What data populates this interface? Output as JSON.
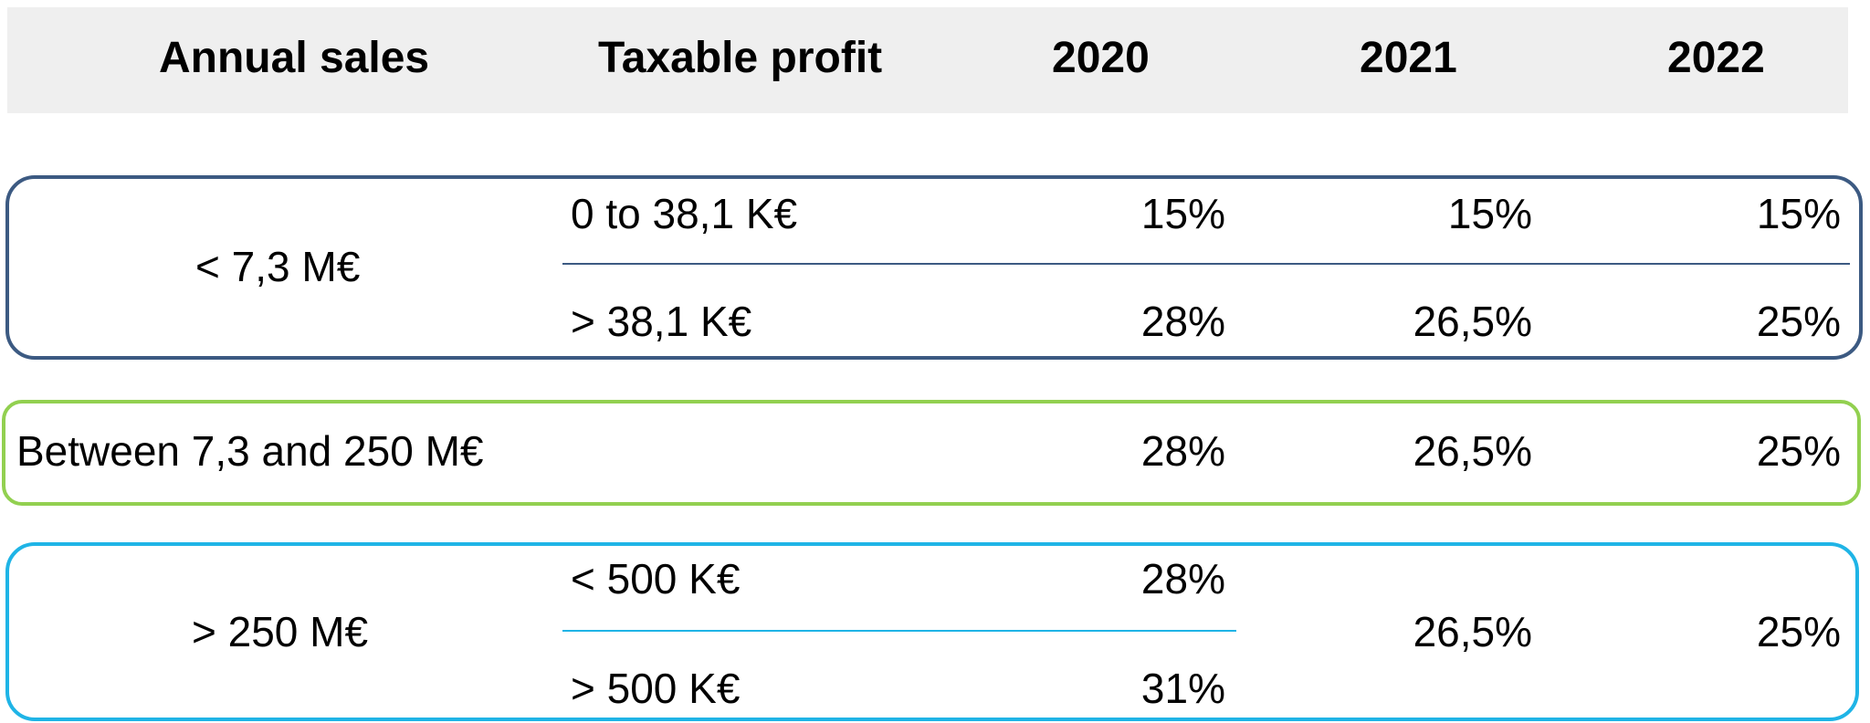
{
  "header": {
    "annual_sales": "Annual sales",
    "taxable_profit": "Taxable profit",
    "y2020": "2020",
    "y2021": "2021",
    "y2022": "2022"
  },
  "colors": {
    "header_background": "#efefef",
    "group1_border": "#3c5a82",
    "group2_border": "#92d050",
    "group3_border": "#1fb4e6"
  },
  "groups": [
    {
      "sales": "< 7,3 M€",
      "rows": [
        {
          "profit": "0 to 38,1 K€",
          "y2020": "15%",
          "y2021": "15%",
          "y2022": "15%"
        },
        {
          "profit": "> 38,1 K€",
          "y2020": "28%",
          "y2021": "26,5%",
          "y2022": "25%"
        }
      ]
    },
    {
      "sales": "Between 7,3 and 250 M€",
      "rows": [
        {
          "profit": "",
          "y2020": "28%",
          "y2021": "26,5%",
          "y2022": "25%"
        }
      ]
    },
    {
      "sales": "> 250 M€",
      "rows": [
        {
          "profit": "< 500 K€",
          "y2020": "28%"
        },
        {
          "profit": "> 500 K€",
          "y2020": "31%"
        }
      ],
      "y2021": "26,5%",
      "y2022": "25%"
    }
  ]
}
